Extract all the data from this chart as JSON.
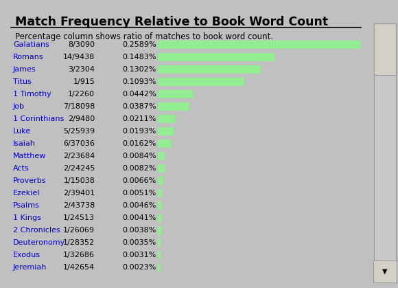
{
  "title": "Match Frequency Relative to Book Word Count",
  "subtitle": "Percentage column shows ratio of matches to book word count.",
  "books": [
    "Galatians",
    "Romans",
    "James",
    "Titus",
    "1 Timothy",
    "Job",
    "1 Corinthians",
    "Luke",
    "Isaiah",
    "Matthew",
    "Acts",
    "Proverbs",
    "Ezekiel",
    "Psalms",
    "1 Kings",
    "2 Chronicles",
    "Deuteronomy",
    "Exodus",
    "Jeremiah"
  ],
  "ratios": [
    "8/3090",
    "14/9438",
    "3/2304",
    "1/915",
    "1/2260",
    "7/18098",
    "2/9480",
    "5/25939",
    "6/37036",
    "2/23684",
    "2/24245",
    "1/15038",
    "2/39401",
    "2/43738",
    "1/24513",
    "1/26069",
    "1/28352",
    "1/32686",
    "1/42654"
  ],
  "percentages": [
    "0.2589%",
    "0.1483%",
    "0.1302%",
    "0.1093%",
    "0.0442%",
    "0.0387%",
    "0.0211%",
    "0.0193%",
    "0.0162%",
    "0.0084%",
    "0.0082%",
    "0.0066%",
    "0.0051%",
    "0.0046%",
    "0.0041%",
    "0.0038%",
    "0.0035%",
    "0.0031%",
    "0.0023%"
  ],
  "values": [
    0.2589,
    0.1483,
    0.1302,
    0.1093,
    0.0442,
    0.0387,
    0.0211,
    0.0193,
    0.0162,
    0.0084,
    0.0082,
    0.0066,
    0.0051,
    0.0046,
    0.0041,
    0.0038,
    0.0035,
    0.0031,
    0.0023
  ],
  "bar_color": "#90EE90",
  "title_color": "#000000",
  "link_color": "#0000CC",
  "text_color": "#000000"
}
